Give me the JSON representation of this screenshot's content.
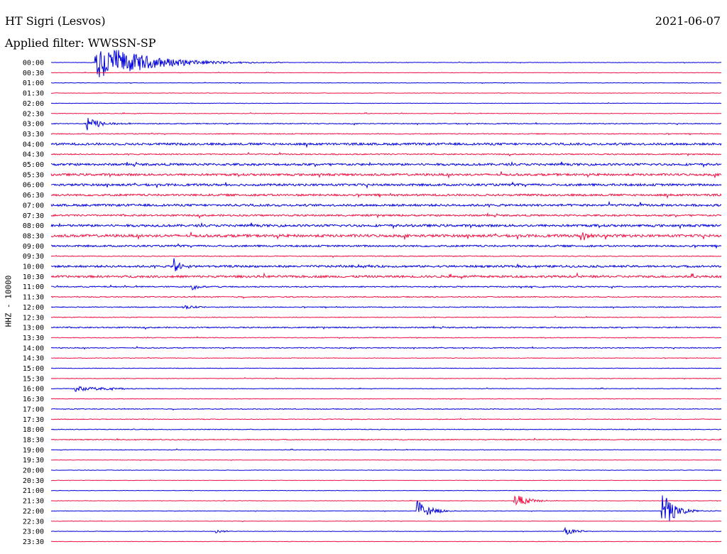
{
  "header": {
    "station": "HT Sigri (Lesvos)",
    "date": "2021-06-07",
    "filter": "Applied filter: WWSSN-SP"
  },
  "chart_data": {
    "type": "line",
    "title": "HT Sigri (Lesvos)",
    "subtitle": "Applied filter: WWSSN-SP",
    "ylabel": "HHZ - 10000",
    "xlabel": "",
    "line_colors": [
      "#0000dd",
      "#ee1144"
    ],
    "y_tick_labels": [
      "00:00",
      "00:30",
      "01:00",
      "01:30",
      "02:00",
      "02:30",
      "03:00",
      "03:30",
      "04:00",
      "04:30",
      "05:00",
      "05:30",
      "06:00",
      "06:30",
      "07:00",
      "07:30",
      "08:00",
      "08:30",
      "09:00",
      "09:30",
      "10:00",
      "10:30",
      "11:00",
      "11:30",
      "12:00",
      "12:30",
      "13:00",
      "13:30",
      "14:00",
      "14:30",
      "15:00",
      "15:30",
      "16:00",
      "16:30",
      "17:00",
      "17:30",
      "18:00",
      "18:30",
      "19:00",
      "19:30",
      "20:00",
      "20:30",
      "21:00",
      "21:30",
      "22:00",
      "22:30",
      "23:00",
      "23:30"
    ],
    "noise_levels": [
      0.3,
      0.3,
      0.3,
      0.3,
      0.3,
      0.4,
      0.6,
      0.6,
      1.5,
      0.8,
      1.5,
      1.5,
      1.5,
      1.4,
      1.5,
      1.2,
      1.6,
      1.8,
      1.2,
      0.6,
      1.4,
      1.5,
      0.8,
      0.7,
      0.6,
      0.5,
      0.8,
      0.5,
      0.6,
      0.4,
      0.4,
      0.4,
      0.4,
      0.4,
      0.5,
      0.5,
      0.5,
      0.6,
      0.4,
      0.3,
      0.3,
      0.3,
      0.3,
      0.3,
      0.3,
      0.3,
      0.3,
      0.3
    ],
    "events": [
      {
        "row": 0,
        "t": 0.065,
        "amp": 30,
        "dur": 0.06
      },
      {
        "row": 6,
        "t": 0.052,
        "amp": 10,
        "dur": 0.02
      },
      {
        "row": 17,
        "t": 0.79,
        "amp": 7,
        "dur": 0.012
      },
      {
        "row": 20,
        "t": 0.182,
        "amp": 12,
        "dur": 0.01
      },
      {
        "row": 22,
        "t": 0.208,
        "amp": 6,
        "dur": 0.01
      },
      {
        "row": 24,
        "t": 0.196,
        "amp": 3,
        "dur": 0.02
      },
      {
        "row": 32,
        "t": 0.036,
        "amp": 4,
        "dur": 0.04
      },
      {
        "row": 44,
        "t": 0.545,
        "amp": 18,
        "dur": 0.015
      },
      {
        "row": 43,
        "t": 0.69,
        "amp": 13,
        "dur": 0.015
      },
      {
        "row": 44,
        "t": 0.91,
        "amp": 32,
        "dur": 0.015
      },
      {
        "row": 46,
        "t": 0.765,
        "amp": 6,
        "dur": 0.015
      },
      {
        "row": 46,
        "t": 0.245,
        "amp": 3,
        "dur": 0.01
      }
    ]
  }
}
